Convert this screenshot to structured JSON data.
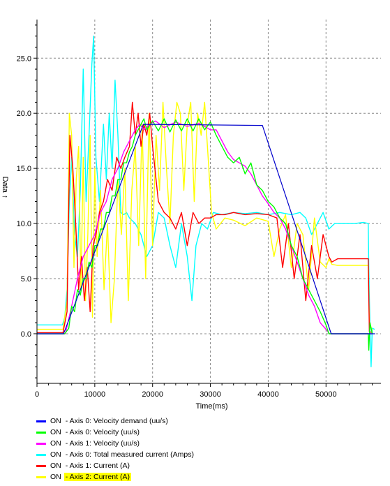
{
  "chart_data": {
    "type": "line",
    "xlabel": "Time(ms)",
    "ylabel": "Data ↑",
    "xlim": [
      0,
      59500
    ],
    "ylim": [
      -4.5,
      28.5
    ],
    "xticks": [
      0,
      10000,
      20000,
      30000,
      40000,
      50000
    ],
    "xtick_labels": [
      "0",
      "10000",
      "20000",
      "30000",
      "40000",
      "50000"
    ],
    "yticks": [
      0,
      5,
      10,
      15,
      20,
      25
    ],
    "ytick_labels": [
      "0.0",
      "5.0",
      "10.0",
      "15.0",
      "20.0",
      "25.0"
    ],
    "grid": true,
    "legend_position": "bottom",
    "series": [
      {
        "name": "Axis 0: Total measured current (Amps)",
        "color": "#00ffff",
        "x": [
          0,
          4400,
          4800,
          5200,
          5600,
          6000,
          6500,
          7000,
          7500,
          8000,
          8500,
          9000,
          9500,
          9800,
          10200,
          10800,
          11500,
          12000,
          12500,
          13000,
          13500,
          14000,
          14500,
          15000,
          15500,
          16000,
          17000,
          18000,
          19000,
          20000,
          21000,
          22000,
          23000,
          24000,
          25000,
          26000,
          26800,
          27500,
          28500,
          29500,
          30500,
          32000,
          34000,
          36000,
          38000,
          40000,
          42000,
          44000,
          45500,
          46500,
          47500,
          48500,
          49500,
          50500,
          51500,
          53000,
          55000,
          56500,
          57300,
          57400,
          57600,
          57800,
          58000,
          58400
        ],
        "y": [
          0.8,
          0.8,
          1.5,
          4,
          12,
          16,
          9,
          7,
          13,
          24,
          12,
          18,
          24.5,
          27,
          16,
          12,
          19,
          14,
          20,
          15,
          23,
          18,
          11,
          10.8,
          11,
          10.5,
          10,
          9,
          7,
          8,
          11,
          10.5,
          8,
          6,
          10,
          7,
          3,
          8,
          10,
          9.5,
          11,
          10.8,
          11,
          10.9,
          11,
          10.8,
          11,
          10.8,
          11,
          10.5,
          9,
          10,
          11,
          9.5,
          10,
          10,
          10,
          10.1,
          10,
          6,
          0.2,
          -3,
          0.5,
          0.4
        ]
      },
      {
        "name": "Axis 2: Current (A)",
        "color": "#ffff00",
        "x": [
          0,
          4500,
          5200,
          5600,
          6000,
          6400,
          6800,
          7200,
          7600,
          8000,
          8400,
          8800,
          9200,
          9600,
          10000,
          10400,
          11000,
          11600,
          12200,
          12800,
          13400,
          14000,
          14600,
          15200,
          15800,
          16400,
          17000,
          17600,
          18200,
          18800,
          19400,
          20000,
          20600,
          21200,
          21800,
          22400,
          23000,
          23600,
          24200,
          24800,
          25400,
          26000,
          26600,
          27200,
          27800,
          28400,
          29000,
          29600,
          30200,
          31000,
          32500,
          34000,
          36000,
          38000,
          40000,
          41000,
          42000,
          43000,
          44000,
          45000,
          46000,
          47000,
          48000,
          49000,
          50000,
          50500,
          51000,
          52000,
          54000,
          56000,
          57300,
          57500,
          58000
        ],
        "y": [
          0.4,
          0.4,
          3,
          20,
          18,
          6,
          14,
          17,
          4,
          16,
          3,
          9,
          18,
          1.5,
          15,
          7,
          13,
          4,
          10,
          1,
          5,
          14,
          9,
          15,
          3,
          13,
          17,
          8,
          19,
          5,
          20,
          8,
          18,
          13,
          21,
          15,
          10,
          18,
          21,
          20,
          13,
          19,
          21,
          12,
          20,
          18,
          21,
          16,
          11,
          9.5,
          10.5,
          10.3,
          9.8,
          10.5,
          10.2,
          7,
          9.5,
          10.8,
          6,
          10,
          9,
          4,
          10.5,
          6.5,
          6,
          6.8,
          6.3,
          6.2,
          6.2,
          6.2,
          6.2,
          1,
          0.3
        ]
      },
      {
        "name": "Axis 1: Current (A)",
        "color": "#ff0000",
        "x": [
          0,
          4500,
          5200,
          5700,
          6200,
          6700,
          7200,
          7700,
          8200,
          8700,
          9200,
          9700,
          10200,
          10800,
          11500,
          12200,
          13000,
          13800,
          14500,
          15200,
          16000,
          16500,
          17000,
          17500,
          18000,
          18500,
          19000,
          19500,
          20000,
          21000,
          22000,
          23000,
          24000,
          25000,
          26000,
          27000,
          28000,
          29000,
          30000,
          31000,
          32500,
          34000,
          36000,
          38000,
          40000,
          41500,
          42500,
          43500,
          44500,
          45500,
          46500,
          47500,
          48500,
          49500,
          50500,
          51000,
          52000,
          54000,
          56000,
          57300,
          57500,
          58000
        ],
        "y": [
          0.1,
          0.1,
          2,
          18,
          15,
          10,
          4,
          7,
          3,
          6,
          2,
          8,
          9,
          11,
          12,
          14,
          13,
          16,
          15,
          16,
          17,
          21,
          18,
          20,
          17,
          19,
          18,
          20,
          17,
          12,
          11,
          10.5,
          9.5,
          11,
          8,
          11,
          10,
          10.5,
          10.5,
          10.8,
          10.8,
          11,
          10.8,
          10.9,
          10.8,
          10.5,
          6,
          10,
          5,
          9,
          3,
          8,
          5,
          9,
          7,
          6.5,
          6.8,
          6.8,
          6.8,
          6.8,
          0.2,
          0.1
        ]
      },
      {
        "name": "Axis 1: Velocity (uu/s)",
        "color": "#ff00ff",
        "x": [
          0,
          4900,
          6000,
          7000,
          8000,
          9000,
          10000,
          11000,
          12000,
          13000,
          14000,
          15000,
          16000,
          17000,
          17800,
          18500,
          19500,
          20500,
          22000,
          24000,
          26000,
          28000,
          30000,
          31000,
          32000,
          33000,
          34000,
          35000,
          36000,
          37000,
          38000,
          39000,
          40000,
          41000,
          42000,
          43000,
          44000,
          45000,
          46000,
          47000,
          48000,
          49000,
          50000,
          50600,
          52000,
          56000,
          58000
        ],
        "y": [
          0,
          0,
          2.5,
          5,
          7,
          8,
          9,
          11,
          12,
          14,
          15,
          16.5,
          17.5,
          18.5,
          19,
          18.5,
          19,
          19.3,
          18.7,
          19.2,
          18.8,
          19.1,
          18.5,
          18.5,
          17.5,
          16.5,
          15.8,
          15.5,
          15.2,
          14.5,
          13.5,
          12.5,
          11.8,
          11,
          10.5,
          9.5,
          8,
          6.5,
          5,
          3.5,
          2.5,
          1,
          0.4,
          0,
          0,
          0,
          0
        ]
      },
      {
        "name": "Axis 0: Velocity (uu/s)",
        "color": "#00ff00",
        "x": [
          0,
          4800,
          5500,
          6000,
          6500,
          7000,
          7500,
          8000,
          8500,
          9000,
          9500,
          10000,
          10500,
          11000,
          11500,
          12000,
          12500,
          13000,
          13500,
          14000,
          14500,
          15000,
          15500,
          16000,
          16500,
          17000,
          17500,
          18000,
          18500,
          19000,
          20000,
          21000,
          22000,
          23000,
          24000,
          25000,
          26000,
          27000,
          28000,
          29000,
          30000,
          31000,
          32000,
          33000,
          34000,
          35000,
          36000,
          37000,
          38000,
          39000,
          40000,
          41000,
          42000,
          43000,
          44000,
          45000,
          46000,
          47000,
          48000,
          49000,
          50000,
          50500,
          51000,
          55000,
          57300,
          57400,
          57600,
          58000
        ],
        "y": [
          0,
          0,
          0.5,
          2.5,
          2,
          4,
          3.5,
          5,
          5,
          6.5,
          6,
          8,
          8,
          9.5,
          9.5,
          11,
          11,
          12.5,
          12.5,
          14,
          14,
          15.5,
          15.5,
          16.5,
          17,
          18,
          18.5,
          19,
          19.5,
          18.5,
          19.3,
          18.4,
          19.5,
          18.3,
          19.4,
          18.4,
          19.5,
          18.4,
          19.5,
          18.5,
          19.2,
          18,
          17,
          16,
          15.5,
          16,
          14.5,
          15.5,
          13.5,
          13,
          12,
          11.5,
          10.5,
          10,
          8,
          7,
          5,
          4,
          3,
          2,
          0.8,
          0,
          0,
          0,
          0,
          -1.5,
          1,
          0
        ]
      },
      {
        "name": "Axis 0: Velocity demand (uu/s)",
        "color": "#0000cc",
        "x": [
          0,
          4600,
          18400,
          39000,
          50900,
          58500
        ],
        "y": [
          0,
          0,
          19,
          18.9,
          0,
          0
        ]
      }
    ]
  },
  "legend": {
    "items": [
      {
        "state": "ON",
        "label": "- Axis 0: Velocity demand (uu/s)",
        "color": "#0000ff"
      },
      {
        "state": "ON",
        "label": "- Axis 0: Velocity (uu/s)",
        "color": "#00ff00"
      },
      {
        "state": "ON",
        "label": "- Axis 1: Velocity (uu/s)",
        "color": "#ff00ff"
      },
      {
        "state": "ON",
        "label": "- Axis 0: Total measured current (Amps)",
        "color": "#00ffff"
      },
      {
        "state": "ON",
        "label": "- Axis 1: Current (A)",
        "color": "#ff0000"
      },
      {
        "state": "ON",
        "label": "- Axis 2: Current (A)",
        "color": "#ffff00"
      }
    ]
  }
}
